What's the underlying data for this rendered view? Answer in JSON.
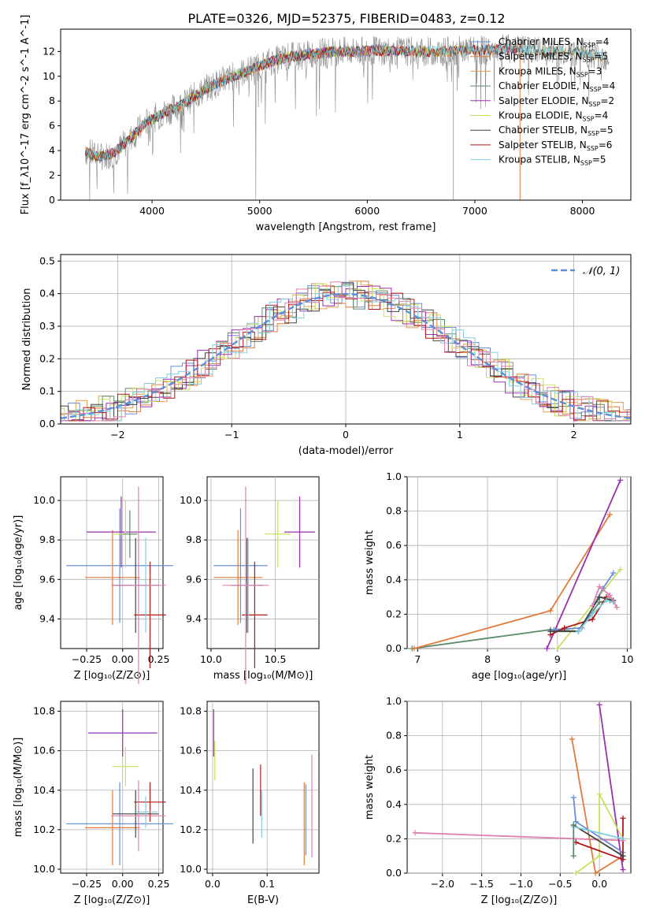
{
  "figure_title": "PLATE=0326, MJD=52375, FIBERID=0483, z=0.12",
  "colors": {
    "chabrier_miles": "#6a8fd8",
    "salpeter_miles": "#e07b3c",
    "kroupa_miles": "#e0a050",
    "chabrier_elodie": "#5a8a6a",
    "salpeter_elodie": "#9a30b0",
    "kroupa_elodie": "#c8e060",
    "chabrier_stelib": "#444444",
    "salpeter_stelib": "#b01818",
    "kroupa_stelib": "#80d0e0",
    "pink": "#e080b0",
    "spectrum_grey": "#8c8c8c",
    "gauss": "#5b8fd8"
  },
  "chart_data": [
    {
      "id": "spectrum",
      "type": "line",
      "title": "PLATE=0326, MJD=52375, FIBERID=0483, z=0.12",
      "xlabel": "wavelength [Angstrom, rest frame]",
      "ylabel": "Flux [f_λ10^-17 erg cm^-2 s^-1 A^-1]",
      "xlim": [
        3150,
        8450
      ],
      "ylim": [
        0,
        13.8
      ],
      "xticks": [
        "4000",
        "5000",
        "6000",
        "7000",
        "8000"
      ],
      "yticks": [
        "0",
        "2",
        "4",
        "6",
        "8",
        "10",
        "12"
      ],
      "grid": false,
      "legend_position": "upper-right",
      "legend": [
        {
          "label": "Chabrier MILES, N",
          "sub": "SSP",
          "suffix": "=4",
          "color": "#6a8fd8"
        },
        {
          "label": "Salpeter MILES, N",
          "sub": "SSP",
          "suffix": "=5",
          "color": "#e07b3c"
        },
        {
          "label": "Kroupa MILES, N",
          "sub": "SSP",
          "suffix": "=3",
          "color": "#e0a050"
        },
        {
          "label": "Chabrier ELODIE, N",
          "sub": "SSP",
          "suffix": "=4",
          "color": "#5a8a6a"
        },
        {
          "label": "Salpeter ELODIE, N",
          "sub": "SSP",
          "suffix": "=2",
          "color": "#9a30b0"
        },
        {
          "label": "Kroupa ELODIE, N",
          "sub": "SSP",
          "suffix": "=4",
          "color": "#c8e060"
        },
        {
          "label": "Chabrier STELIB, N",
          "sub": "SSP",
          "suffix": "=5",
          "color": "#444444"
        },
        {
          "label": "Salpeter STELIB, N",
          "sub": "SSP",
          "suffix": "=6",
          "color": "#b01818"
        },
        {
          "label": "Kroupa STELIB, N",
          "sub": "SSP",
          "suffix": "=5",
          "color": "#80d0e0"
        }
      ],
      "continuum_x": [
        3380,
        3500,
        3650,
        3800,
        3950,
        4100,
        4300,
        4500,
        4700,
        4900,
        5100,
        5300,
        5500,
        5700,
        5900,
        6100,
        6300,
        6500,
        6700,
        6900,
        7100,
        7300,
        7500,
        7700,
        7900,
        8100,
        8200
      ],
      "continuum_y": [
        3.9,
        3.5,
        3.8,
        5.0,
        6.3,
        7.0,
        7.8,
        9.0,
        9.8,
        10.5,
        11.2,
        11.6,
        11.8,
        12.0,
        12.0,
        12.1,
        12.0,
        12.0,
        12.0,
        12.1,
        12.1,
        12.2,
        12.1,
        12.0,
        12.0,
        11.8,
        11.6
      ],
      "model_xmax": [
        7450,
        6800,
        8200,
        6300,
        6400,
        7000,
        8200,
        7400,
        8200
      ]
    },
    {
      "id": "residuals",
      "type": "histogram",
      "xlabel": "(data-model)/error",
      "ylabel": "Normed distribution",
      "xlim": [
        -2.5,
        2.5
      ],
      "ylim": [
        0,
        0.52
      ],
      "xticks": [
        "−2",
        "−1",
        "0",
        "1",
        "2"
      ],
      "yticks": [
        "0.0",
        "0.1",
        "0.2",
        "0.3",
        "0.4",
        "0.5"
      ],
      "grid": true,
      "legend_position": "upper-right",
      "gauss_label": "𝒩(0, 1)",
      "bin_width": 0.1,
      "gauss_mu": 0,
      "gauss_sigma": 1
    },
    {
      "id": "age_vs_Z",
      "type": "errorbar",
      "xlabel": "Z [log₁₀(Z/Z⊙)]",
      "ylabel": "age [log₁₀(age/yr)]",
      "xlim": [
        -0.43,
        0.28
      ],
      "ylim": [
        9.25,
        10.12
      ],
      "xticks": [
        "−0.25",
        "0.00",
        "0.25"
      ],
      "xtick_values": [
        -0.25,
        0.0,
        0.25
      ],
      "yticks": [
        "9.4",
        "9.6",
        "9.8",
        "10.0"
      ],
      "ytick_values": [
        9.4,
        9.6,
        9.8,
        10.0
      ],
      "points": [
        {
          "x": -0.02,
          "y": 9.67,
          "xerr": 0.37,
          "yerr": 0.29,
          "color": "#6a8fd8"
        },
        {
          "x": -0.07,
          "y": 9.61,
          "xerr": 0.19,
          "yerr": 0.24,
          "color": "#e07b3c"
        },
        {
          "x": -0.01,
          "y": 9.84,
          "xerr": 0.24,
          "yerr": 0.18,
          "color": "#9a30b0"
        },
        {
          "x": 0.02,
          "y": 9.83,
          "xerr": 0.09,
          "yerr": 0.17,
          "color": "#c8e060"
        },
        {
          "x": 0.09,
          "y": 9.57,
          "xerr": 0.16,
          "yerr": 0.24,
          "color": "#444444"
        },
        {
          "x": 0.19,
          "y": 9.42,
          "xerr": 0.11,
          "yerr": 0.27,
          "color": "#b01818"
        },
        {
          "x": 0.16,
          "y": 9.57,
          "xerr": 0.08,
          "yerr": 0.24,
          "color": "#80d0e0"
        },
        {
          "x": 0.11,
          "y": 9.57,
          "xerr": 0.19,
          "yerr": 0.5,
          "color": "#e080b0"
        },
        {
          "x": 0.05,
          "y": 9.83,
          "xerr": 0.05,
          "yerr": 0.12,
          "color": "#5a8a6a"
        }
      ]
    },
    {
      "id": "age_vs_mass",
      "type": "errorbar",
      "xlabel": "mass [log₁₀(M/M⊙)]",
      "ylabel": "",
      "xlim": [
        9.97,
        10.84
      ],
      "ylim": [
        9.25,
        10.12
      ],
      "xticks": [
        "10.0",
        "10.5"
      ],
      "xtick_values": [
        10.0,
        10.5
      ],
      "yticks": [
        "9.4",
        "9.6",
        "9.8",
        "10.0"
      ],
      "ytick_values": [
        9.4,
        9.6,
        9.8,
        10.0
      ],
      "points": [
        {
          "x": 10.23,
          "y": 9.67,
          "xerr": 0.21,
          "yerr": 0.29,
          "color": "#6a8fd8"
        },
        {
          "x": 10.21,
          "y": 9.61,
          "xerr": 0.19,
          "yerr": 0.24,
          "color": "#e07b3c"
        },
        {
          "x": 10.69,
          "y": 9.84,
          "xerr": 0.12,
          "yerr": 0.18,
          "color": "#9a30b0"
        },
        {
          "x": 10.52,
          "y": 9.83,
          "xerr": 0.1,
          "yerr": 0.17,
          "color": "#c8e060"
        },
        {
          "x": 10.28,
          "y": 9.57,
          "xerr": 0.12,
          "yerr": 0.24,
          "color": "#444444"
        },
        {
          "x": 10.34,
          "y": 9.42,
          "xerr": 0.1,
          "yerr": 0.27,
          "color": "#b01818"
        },
        {
          "x": 10.29,
          "y": 9.57,
          "xerr": 0.08,
          "yerr": 0.24,
          "color": "#80d0e0"
        },
        {
          "x": 10.27,
          "y": 9.57,
          "xerr": 0.18,
          "yerr": 0.5,
          "color": "#e080b0"
        }
      ]
    },
    {
      "id": "mass_weight_vs_age",
      "type": "line",
      "xlabel": "age [log₁₀(age/yr)]",
      "ylabel": "mass weight",
      "xlim": [
        6.85,
        10.05
      ],
      "ylim": [
        0,
        1.0
      ],
      "xticks": [
        "7",
        "8",
        "9",
        "10"
      ],
      "xtick_values": [
        7,
        8,
        9,
        10
      ],
      "yticks": [
        "0.0",
        "0.2",
        "0.4",
        "0.6",
        "0.8",
        "1.0"
      ],
      "ytick_values": [
        0,
        0.2,
        0.4,
        0.6,
        0.8,
        1.0
      ],
      "grid": true,
      "series": [
        {
          "color": "#5a8a6a",
          "x": [
            6.92,
            8.9,
            9.3,
            9.6,
            9.75
          ],
          "y": [
            0.0,
            0.11,
            0.1,
            0.27,
            0.28
          ]
        },
        {
          "color": "#e07b3c",
          "x": [
            6.95,
            8.9,
            9.75
          ],
          "y": [
            0.0,
            0.22,
            0.78
          ]
        },
        {
          "color": "#9a30b0",
          "x": [
            8.85,
            9.9
          ],
          "y": [
            0.0,
            0.98
          ]
        },
        {
          "color": "#c8e060",
          "x": [
            9.0,
            9.9
          ],
          "y": [
            0.0,
            0.46
          ]
        },
        {
          "color": "#6a8fd8",
          "x": [
            8.95,
            9.35,
            9.65,
            9.8
          ],
          "y": [
            0.11,
            0.12,
            0.35,
            0.44
          ]
        },
        {
          "color": "#b01818",
          "x": [
            8.9,
            9.1,
            9.5,
            9.7
          ],
          "y": [
            0.08,
            0.12,
            0.17,
            0.3
          ]
        },
        {
          "color": "#444444",
          "x": [
            8.9,
            9.3,
            9.6,
            9.8
          ],
          "y": [
            0.1,
            0.1,
            0.3,
            0.28
          ]
        },
        {
          "color": "#80d0e0",
          "x": [
            9.3,
            9.5,
            9.7,
            9.8
          ],
          "y": [
            0.1,
            0.2,
            0.28,
            0.27
          ]
        },
        {
          "color": "#e080b0",
          "x": [
            9.5,
            9.6,
            9.75,
            9.85
          ],
          "y": [
            0.25,
            0.36,
            0.31,
            0.24
          ]
        }
      ]
    },
    {
      "id": "mass_vs_Z",
      "type": "errorbar",
      "xlabel": "Z [log₁₀(Z/Z⊙)]",
      "ylabel": "mass [log₁₀(M/M⊙)]",
      "xlim": [
        -0.43,
        0.28
      ],
      "ylim": [
        9.98,
        10.85
      ],
      "xticks": [
        "−0.25",
        "0.00",
        "0.25"
      ],
      "xtick_values": [
        -0.25,
        0.0,
        0.25
      ],
      "yticks": [
        "10.0",
        "10.2",
        "10.4",
        "10.6",
        "10.8"
      ],
      "ytick_values": [
        10.0,
        10.2,
        10.4,
        10.6,
        10.8
      ],
      "points": [
        {
          "x": -0.02,
          "y": 10.23,
          "xerr": 0.37,
          "yerr": 0.21,
          "color": "#6a8fd8"
        },
        {
          "x": -0.07,
          "y": 10.21,
          "xerr": 0.19,
          "yerr": 0.19,
          "color": "#e07b3c"
        },
        {
          "x": 0.0,
          "y": 10.69,
          "xerr": 0.24,
          "yerr": 0.12,
          "color": "#9a30b0"
        },
        {
          "x": 0.02,
          "y": 10.52,
          "xerr": 0.09,
          "yerr": 0.1,
          "color": "#c8e060"
        },
        {
          "x": 0.09,
          "y": 10.28,
          "xerr": 0.16,
          "yerr": 0.12,
          "color": "#444444"
        },
        {
          "x": 0.19,
          "y": 10.34,
          "xerr": 0.11,
          "yerr": 0.1,
          "color": "#b01818"
        },
        {
          "x": 0.16,
          "y": 10.29,
          "xerr": 0.08,
          "yerr": 0.08,
          "color": "#80d0e0"
        },
        {
          "x": 0.11,
          "y": 10.27,
          "xerr": 0.19,
          "yerr": 0.18,
          "color": "#e080b0"
        }
      ]
    },
    {
      "id": "mass_vs_ebv",
      "type": "errorbar",
      "xlabel": "E(B-V)",
      "ylabel": "",
      "xlim": [
        -0.01,
        0.195
      ],
      "ylim": [
        9.98,
        10.85
      ],
      "xticks": [
        "0.0",
        "0.1"
      ],
      "xtick_values": [
        0.0,
        0.1
      ],
      "yticks": [
        "10.0",
        "10.2",
        "10.4",
        "10.6",
        "10.8"
      ],
      "ytick_values": [
        10.0,
        10.2,
        10.4,
        10.6,
        10.8
      ],
      "points": [
        {
          "x": 0.002,
          "y": 10.69,
          "xerr": 0.0,
          "yerr": 0.12,
          "color": "#9a30b0"
        },
        {
          "x": 0.004,
          "y": 10.55,
          "xerr": 0.0,
          "yerr": 0.1,
          "color": "#c8e060"
        },
        {
          "x": 0.074,
          "y": 10.32,
          "xerr": 0.0,
          "yerr": 0.19,
          "color": "#444444"
        },
        {
          "x": 0.088,
          "y": 10.4,
          "xerr": 0.0,
          "yerr": 0.13,
          "color": "#b01818"
        },
        {
          "x": 0.09,
          "y": 10.28,
          "xerr": 0.0,
          "yerr": 0.12,
          "color": "#80d0e0"
        },
        {
          "x": 0.168,
          "y": 10.23,
          "xerr": 0.0,
          "yerr": 0.21,
          "color": "#e07b3c"
        },
        {
          "x": 0.171,
          "y": 10.25,
          "xerr": 0.0,
          "yerr": 0.18,
          "color": "#6a8fd8"
        },
        {
          "x": 0.182,
          "y": 10.32,
          "xerr": 0.0,
          "yerr": 0.26,
          "color": "#e080b0"
        }
      ]
    },
    {
      "id": "mass_weight_vs_Z",
      "type": "line",
      "xlabel": "Z [log₁₀(Z/Z⊙)]",
      "ylabel": "mass weight",
      "xlim": [
        -2.45,
        0.4
      ],
      "ylim": [
        0,
        1.0
      ],
      "xticks": [
        "−2.0",
        "−1.5",
        "−1.0",
        "−0.5",
        "0.0"
      ],
      "xtick_values": [
        -2.0,
        -1.5,
        -1.0,
        -0.5,
        0.0
      ],
      "yticks": [
        "0.0",
        "0.2",
        "0.4",
        "0.6",
        "0.8",
        "1.0"
      ],
      "ytick_values": [
        0,
        0.2,
        0.4,
        0.6,
        0.8,
        1.0
      ],
      "grid": true,
      "series": [
        {
          "color": "#e080b0",
          "x": [
            -2.35,
            0.3
          ],
          "y": [
            0.235,
            0.19
          ]
        },
        {
          "color": "#e07b3c",
          "x": [
            -0.35,
            -0.05,
            0.3
          ],
          "y": [
            0.78,
            0.0,
            0.1
          ]
        },
        {
          "color": "#9a30b0",
          "x": [
            0.0,
            0.3
          ],
          "y": [
            0.98,
            0.02
          ]
        },
        {
          "color": "#c8e060",
          "x": [
            -0.3,
            0.0,
            0.0,
            0.3
          ],
          "y": [
            0.0,
            0.1,
            0.46,
            0.2
          ]
        },
        {
          "color": "#6a8fd8",
          "x": [
            -0.33,
            -0.3,
            0.3
          ],
          "y": [
            0.44,
            0.3,
            0.12
          ]
        },
        {
          "color": "#b01818",
          "x": [
            -0.3,
            0.3,
            0.3
          ],
          "y": [
            0.18,
            0.08,
            0.32
          ]
        },
        {
          "color": "#444444",
          "x": [
            -0.33,
            0.3
          ],
          "y": [
            0.28,
            0.1
          ]
        },
        {
          "color": "#80d0e0",
          "x": [
            -0.33,
            0.3
          ],
          "y": [
            0.27,
            0.2
          ]
        },
        {
          "color": "#5a8a6a",
          "x": [
            -0.33,
            -0.33
          ],
          "y": [
            0.1,
            0.28
          ]
        }
      ]
    }
  ]
}
